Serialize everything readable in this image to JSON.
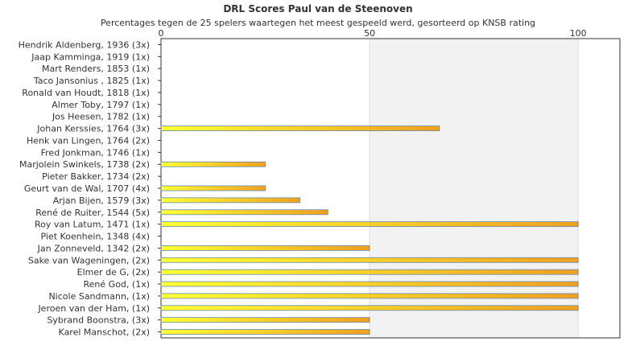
{
  "chart_data": {
    "type": "bar",
    "orientation": "horizontal",
    "title": "DRL Scores Paul van de Steenoven",
    "subtitle": "Percentages tegen de 25 spelers waartegen het meest gespeeld werd, gesorteerd op KNSB rating",
    "xlim": [
      0,
      110
    ],
    "xticks": [
      0,
      50,
      100
    ],
    "grid": true,
    "categories": [
      "Hendrik Aldenberg, 1936 (3x)",
      "Jaap Kamminga, 1919 (1x)",
      "Mart Renders, 1853 (1x)",
      "Taco Jansonius , 1825 (1x)",
      "Ronald van Houdt, 1818 (1x)",
      "Almer Toby, 1797 (1x)",
      "Jos Heesen, 1782 (1x)",
      "Johan Kerssies, 1764 (3x)",
      "Henk van Lingen, 1764 (2x)",
      "Fred Jonkman, 1746 (1x)",
      "Marjolein Swinkels, 1738 (2x)",
      "Pieter Bakker, 1734 (2x)",
      "Geurt van de Wal, 1707 (4x)",
      "Arjan Bijen, 1579 (3x)",
      "René de Ruiter, 1544 (5x)",
      "Roy van Latum, 1471 (1x)",
      "Piet Koenhein, 1348 (4x)",
      "Jan Zonneveld, 1342 (2x)",
      "Sake van Wageningen,  (2x)",
      "Elmer de G,  (2x)",
      "René God,  (1x)",
      "Nicole Sandmann,  (1x)",
      "Jeroen van der Ham,  (1x)",
      "Sybrand Boonstra,  (3x)",
      "Karel Manschot,  (2x)"
    ],
    "values": [
      0,
      0,
      0,
      0,
      0,
      0,
      0,
      66.7,
      0,
      0,
      25,
      0,
      25,
      33.3,
      40,
      100,
      0,
      50,
      100,
      100,
      100,
      100,
      100,
      50,
      50
    ],
    "colors": {
      "bar_start": "#ffff33",
      "bar_end": "#f0a020",
      "bar_border": "#6688aa",
      "band": "#f2f2f2",
      "axis": "#333333",
      "grid": "#dddddd"
    }
  }
}
